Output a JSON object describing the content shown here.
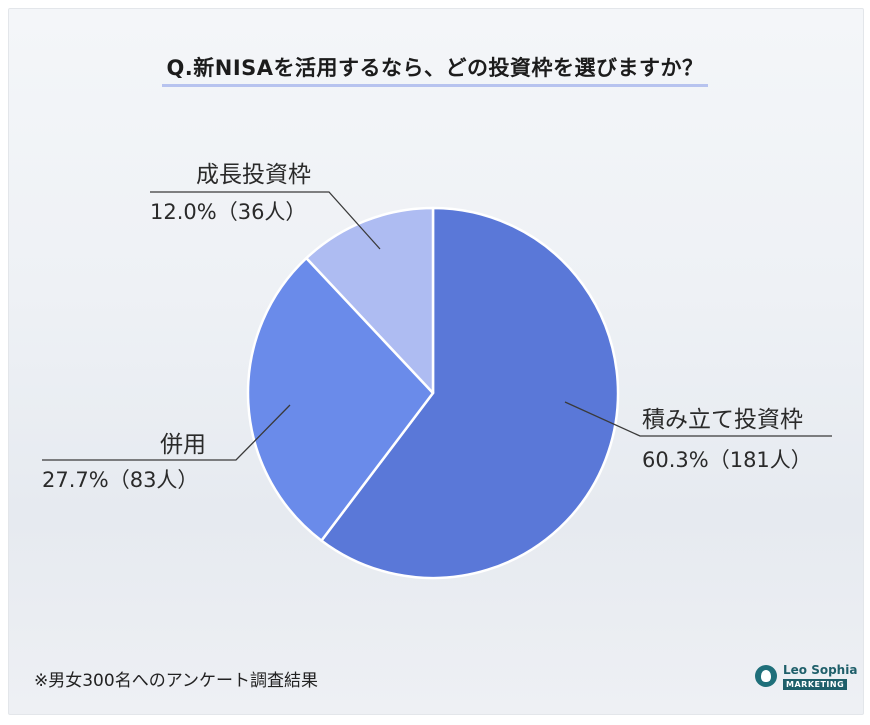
{
  "chart_data": {
    "type": "pie",
    "title": "Q.新NISAを活用するなら、どの投資枠を選びますか？",
    "slices": [
      {
        "label": "積み立て投資枠",
        "value": 60.3,
        "value_text": "60.3%（181人）",
        "count": 181,
        "color": "#5a78d8"
      },
      {
        "label": "併用",
        "value": 27.7,
        "value_text": "27.7%（83人）",
        "count": 83,
        "color": "#6a8bea"
      },
      {
        "label": "成長投資枠",
        "value": 12.0,
        "value_text": "12.0%（36人）",
        "count": 36,
        "color": "#aebcf2"
      }
    ],
    "start": "12 o'clock",
    "direction": "clockwise",
    "legend": "none"
  },
  "footnote": "※男女300名へのアンケート調査結果",
  "logo": {
    "name": "Leo Sophia",
    "sub": "MARKETING"
  }
}
